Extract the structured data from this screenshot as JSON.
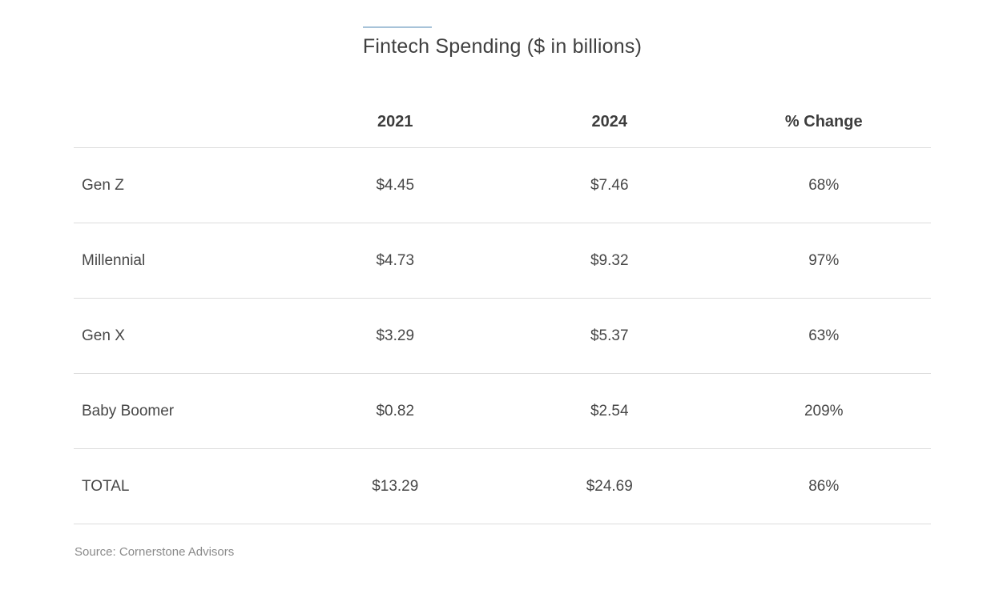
{
  "title": "Fintech Spending ($ in billions)",
  "colors": {
    "title_accent": "#a7c3d9",
    "divider": "#dcdcdc",
    "header_text": "#3d3d3d",
    "body_text": "#474747",
    "source_text": "#8a8a8a",
    "background": "#ffffff"
  },
  "table": {
    "header": [
      "",
      "2021",
      "2024",
      "% Change"
    ],
    "rows": [
      [
        "Gen Z",
        "$4.45",
        "$7.46",
        "68%"
      ],
      [
        "Millennial",
        "$4.73",
        "$9.32",
        "97%"
      ],
      [
        "Gen X",
        "$3.29",
        "$5.37",
        "63%"
      ],
      [
        "Baby Boomer",
        "$0.82",
        "$2.54",
        "209%"
      ],
      [
        "TOTAL",
        "$13.29",
        "$24.69",
        "86%"
      ]
    ]
  },
  "source": "Source: Cornerstone Advisors",
  "chart_data": {
    "type": "table",
    "title": "Fintech Spending ($ in billions)",
    "unit": "$ in billions",
    "columns": [
      "2021",
      "2024",
      "% Change"
    ],
    "categories": [
      "Gen Z",
      "Millennial",
      "Gen X",
      "Baby Boomer",
      "TOTAL"
    ],
    "series": [
      {
        "name": "2021",
        "values": [
          4.45,
          4.73,
          3.29,
          0.82,
          13.29
        ]
      },
      {
        "name": "2024",
        "values": [
          7.46,
          9.32,
          5.37,
          2.54,
          24.69
        ]
      },
      {
        "name": "% Change",
        "values": [
          68,
          97,
          63,
          209,
          86
        ]
      }
    ],
    "source": "Source: Cornerstone Advisors"
  }
}
